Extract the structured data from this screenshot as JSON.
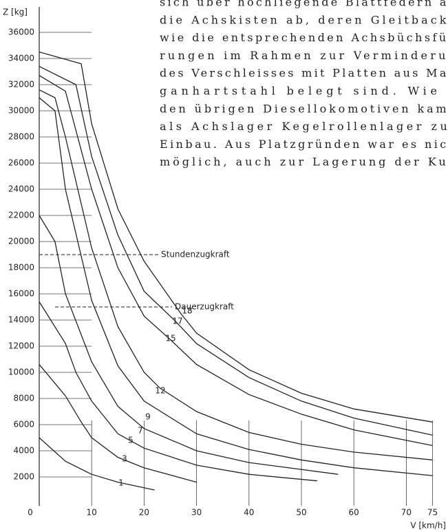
{
  "text": {
    "lines": [
      "sich über hochliegende Blattfedern au",
      "die Achskisten ab, deren Gleitbacke",
      "wie die entsprechenden Achsbüchsfüh",
      "rungen im Rahmen zur Verminderun",
      "des Verschleisses mit Platten aus Man",
      "ganhartstahl belegt sind. Wie b",
      "den übrigen Diesellokomotiven kame",
      "als Achslager Kegelrollenlager zur",
      "Einbau. Aus Platzgründen war es nich",
      "möglich, auch zur Lagerung der Kup"
    ]
  },
  "chart_data": {
    "type": "line",
    "x_label": "V [km/h]",
    "y_label": "Z [kg]",
    "xlim": [
      0,
      78
    ],
    "ylim": [
      0,
      38000
    ],
    "xticks": [
      0,
      10,
      20,
      30,
      40,
      50,
      60,
      70,
      75
    ],
    "yticks": [
      2000,
      4000,
      6000,
      8000,
      10000,
      12000,
      14000,
      16000,
      18000,
      20000,
      22000,
      24000,
      26000,
      28000,
      30000,
      32000,
      34000,
      36000
    ],
    "reference_lines": [
      {
        "label": "Stundenzugkraft",
        "value": 19000
      },
      {
        "label": "Dauerzugkraft",
        "value": 15000
      }
    ],
    "series": [
      {
        "name": "1",
        "color": "#222",
        "x": [
          0,
          5,
          10,
          15,
          22
        ],
        "values": [
          5000,
          3200,
          2200,
          1600,
          1000
        ]
      },
      {
        "name": "3",
        "color": "#222",
        "x": [
          0,
          5,
          8,
          10,
          15,
          20,
          30
        ],
        "values": [
          10600,
          8200,
          6200,
          5000,
          3500,
          2700,
          1600
        ]
      },
      {
        "name": "5",
        "color": "#222",
        "x": [
          0,
          5,
          7,
          10,
          15,
          20,
          30,
          40,
          53
        ],
        "values": [
          15400,
          12200,
          10000,
          7800,
          5300,
          4200,
          2900,
          2200,
          1700
        ]
      },
      {
        "name": "7",
        "color": "#222",
        "x": [
          0,
          3,
          5,
          10,
          15,
          20,
          30,
          40,
          57
        ],
        "values": [
          22000,
          20000,
          16000,
          10800,
          7400,
          5700,
          4000,
          3100,
          2200
        ]
      },
      {
        "name": "9",
        "color": "#222",
        "x": [
          0,
          3,
          5,
          10,
          15,
          20,
          30,
          40,
          50,
          60,
          75
        ],
        "values": [
          31000,
          30000,
          24000,
          15500,
          10500,
          7800,
          5300,
          4100,
          3300,
          2700,
          2100
        ]
      },
      {
        "name": "12",
        "color": "#222",
        "x": [
          0,
          3,
          5,
          10,
          15,
          20,
          23,
          30,
          40,
          50,
          60,
          75
        ],
        "values": [
          31600,
          31000,
          28000,
          19500,
          13500,
          10000,
          8800,
          7000,
          5400,
          4500,
          3900,
          3300
        ]
      },
      {
        "name": "15",
        "color": "#222",
        "x": [
          0,
          5,
          10,
          15,
          20,
          25,
          30,
          40,
          50,
          60,
          75
        ],
        "values": [
          32700,
          31500,
          24000,
          18000,
          14300,
          12500,
          10600,
          8300,
          6800,
          5600,
          4400
        ]
      },
      {
        "name": "17",
        "color": "#222",
        "x": [
          0,
          7,
          10,
          15,
          20,
          26,
          30,
          40,
          50,
          60,
          75
        ],
        "values": [
          33400,
          32000,
          26500,
          20500,
          16200,
          13900,
          12200,
          9600,
          7800,
          6500,
          5200
        ]
      },
      {
        "name": "18",
        "color": "#222",
        "x": [
          0,
          8,
          10,
          15,
          20,
          27,
          30,
          40,
          50,
          60,
          75
        ],
        "values": [
          34500,
          33600,
          29000,
          22500,
          18500,
          14500,
          13000,
          10200,
          8400,
          7200,
          6200
        ]
      }
    ]
  }
}
